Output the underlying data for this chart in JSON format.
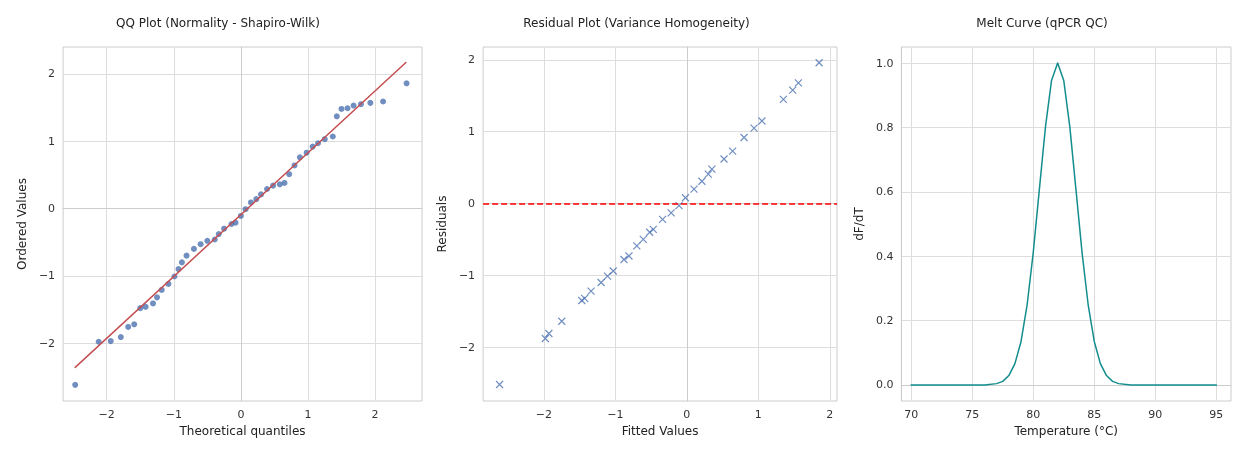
{
  "chart_data": [
    {
      "type": "scatter",
      "title": "QQ Plot (Normality - Shapiro-Wilk)",
      "xlabel": "Theoretical quantiles",
      "ylabel": "Ordered Values",
      "grid": true,
      "xlim": [
        -2.65,
        2.7
      ],
      "ylim": [
        -2.86,
        2.4
      ],
      "xticks": [
        -2,
        -1,
        0,
        1,
        2
      ],
      "yticks": [
        -2,
        -1,
        0,
        1,
        2
      ],
      "series": [
        {
          "marker": "circle",
          "color": "#4c72b0",
          "x": [
            -2.47,
            -2.12,
            -1.94,
            -1.79,
            -1.68,
            -1.59,
            -1.5,
            -1.42,
            -1.31,
            -1.25,
            -1.18,
            -1.08,
            -0.99,
            -0.93,
            -0.88,
            -0.81,
            -0.7,
            -0.6,
            -0.5,
            -0.39,
            -0.33,
            -0.25,
            -0.14,
            -0.08,
            0,
            0.07,
            0.15,
            0.23,
            0.3,
            0.39,
            0.48,
            0.58,
            0.65,
            0.72,
            0.8,
            0.88,
            0.98,
            1.07,
            1.15,
            1.25,
            1.37,
            1.43,
            1.5,
            1.59,
            1.68,
            1.79,
            1.93,
            2.12,
            2.47
          ],
          "values": [
            -2.62,
            -1.98,
            -1.97,
            -1.91,
            -1.76,
            -1.72,
            -1.48,
            -1.46,
            -1.41,
            -1.32,
            -1.21,
            -1.12,
            -1.01,
            -0.9,
            -0.8,
            -0.7,
            -0.6,
            -0.53,
            -0.48,
            -0.46,
            -0.38,
            -0.3,
            -0.23,
            -0.21,
            -0.11,
            -0.01,
            0.09,
            0.14,
            0.21,
            0.29,
            0.34,
            0.36,
            0.38,
            0.51,
            0.64,
            0.76,
            0.83,
            0.92,
            0.97,
            1.03,
            1.07,
            1.37,
            1.48,
            1.49,
            1.53,
            1.55,
            1.57,
            1.59,
            1.86
          ]
        },
        {
          "type": "line",
          "color": "#c44e52",
          "x": [
            -2.47,
            2.46
          ],
          "values": [
            -2.36,
            2.17
          ]
        }
      ]
    },
    {
      "type": "scatter",
      "title": "Residual Plot (Variance Homogeneity)",
      "xlabel": "Fitted Values",
      "ylabel": "Residuals",
      "grid": true,
      "xlim": [
        -2.85,
        2.1
      ],
      "ylim": [
        -2.75,
        2.18
      ],
      "xticks": [
        -2,
        -1,
        0,
        1,
        2
      ],
      "yticks": [
        -2,
        -1,
        0,
        1,
        2
      ],
      "series": [
        {
          "marker": "cross",
          "color": "#4c72b0",
          "x": [
            -2.62,
            -1.98,
            -1.93,
            -1.75,
            -1.47,
            -1.43,
            -1.34,
            -1.2,
            -1.11,
            -1.03,
            -0.88,
            -0.81,
            -0.7,
            -0.61,
            -0.52,
            -0.47,
            -0.34,
            -0.22,
            -0.11,
            -0.02,
            0.1,
            0.21,
            0.3,
            0.35,
            0.52,
            0.64,
            0.8,
            0.94,
            1.05,
            1.35,
            1.48,
            1.56,
            1.85
          ],
          "values": [
            -2.52,
            -1.88,
            -1.81,
            -1.64,
            -1.35,
            -1.32,
            -1.22,
            -1.1,
            -1.01,
            -0.94,
            -0.78,
            -0.73,
            -0.59,
            -0.5,
            -0.4,
            -0.36,
            -0.22,
            -0.13,
            -0.03,
            0.08,
            0.2,
            0.31,
            0.41,
            0.48,
            0.62,
            0.73,
            0.92,
            1.05,
            1.15,
            1.45,
            1.58,
            1.68,
            1.96
          ]
        }
      ],
      "ref_lines": [
        {
          "axis": "y",
          "value": 0,
          "label": null,
          "color": "#ff0000",
          "line_style": "dashed"
        }
      ]
    },
    {
      "type": "line",
      "title": "Melt Curve (qPCR QC)",
      "xlabel": "Temperature (°C)",
      "ylabel": "dF/dT",
      "grid": true,
      "xlim": [
        69.2,
        96.2
      ],
      "ylim": [
        -0.05,
        1.05
      ],
      "xticks": [
        70,
        75,
        80,
        85,
        90,
        95
      ],
      "yticks": [
        {
          "value": 0,
          "label": "0.0"
        },
        {
          "value": 0.2,
          "label": "0.2"
        },
        {
          "value": 0.4,
          "label": "0.4"
        },
        {
          "value": 0.6,
          "label": "0.6"
        },
        {
          "value": 0.8,
          "label": "0.8"
        },
        {
          "value": 1,
          "label": "1.0"
        }
      ],
      "series": [
        {
          "color": "#138d8d",
          "x": [
            70,
            76,
            77,
            77.5,
            78,
            78.5,
            79,
            79.5,
            80,
            80.5,
            81,
            81.5,
            82,
            82.5,
            83,
            83.5,
            84,
            84.5,
            85,
            85.5,
            86,
            86.5,
            87,
            88,
            95
          ],
          "values": [
            0,
            0,
            0.004,
            0.011,
            0.029,
            0.066,
            0.135,
            0.249,
            0.411,
            0.607,
            0.801,
            0.946,
            1,
            0.946,
            0.801,
            0.607,
            0.411,
            0.249,
            0.135,
            0.066,
            0.029,
            0.011,
            0.004,
            0,
            0
          ]
        }
      ]
    }
  ]
}
